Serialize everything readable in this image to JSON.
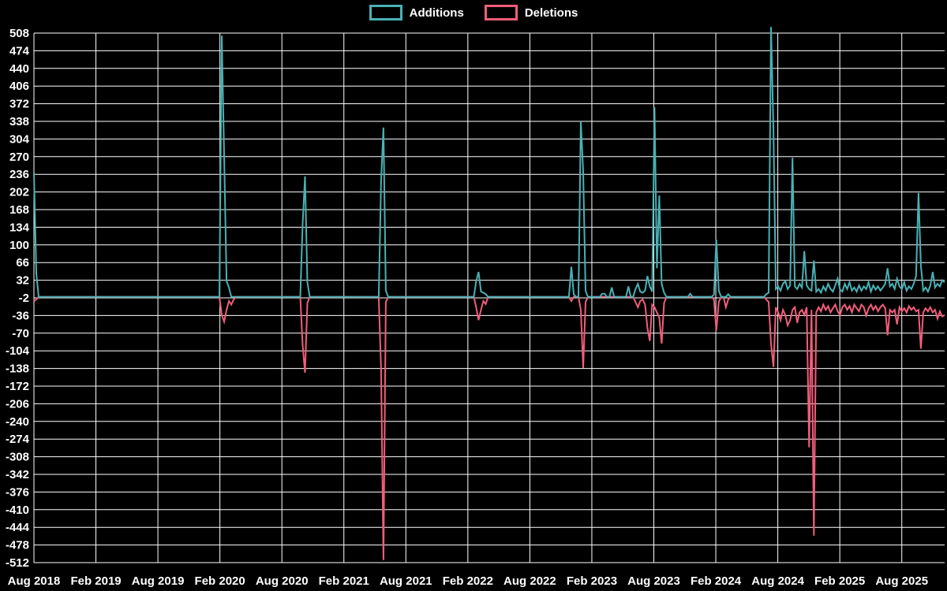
{
  "legend": {
    "items": [
      {
        "label": "Additions",
        "color": "#48b1b5"
      },
      {
        "label": "Deletions",
        "color": "#f25d7a"
      }
    ]
  },
  "chart_data": {
    "type": "line",
    "title": "",
    "xlabel": "",
    "ylabel": "",
    "background_color": "#000000",
    "grid": true,
    "grid_color": "#ffffff",
    "text_color": "#ffffff",
    "legend_position": "top-center",
    "x_unit": "weeks since Aug 2018",
    "weeks_total": 384,
    "x_axis": {
      "tick_labels": [
        "Aug 2018",
        "Feb 2019",
        "Aug 2019",
        "Feb 2020",
        "Aug 2020",
        "Feb 2021",
        "Aug 2021",
        "Feb 2022",
        "Aug 2022",
        "Feb 2023",
        "Aug 2023",
        "Feb 2024",
        "Aug 2024",
        "Feb 2025",
        "Aug 2025"
      ],
      "tick_spacing_weeks": 26.07
    },
    "y_axis": {
      "range": [
        -512,
        508
      ],
      "ticks": [
        508,
        474,
        440,
        406,
        372,
        338,
        304,
        270,
        236,
        202,
        168,
        134,
        100,
        66,
        32,
        -2,
        -36,
        -70,
        -104,
        -138,
        -172,
        -206,
        -240,
        -274,
        -308,
        -342,
        -376,
        -410,
        -444,
        -478,
        -512
      ]
    },
    "series": [
      {
        "name": "Additions",
        "color": "#48b1b5",
        "default": 0,
        "points_sparse": [
          [
            0,
            240
          ],
          [
            1,
            45
          ],
          [
            2,
            0
          ],
          [
            79,
            503
          ],
          [
            80,
            273
          ],
          [
            81,
            30
          ],
          [
            82,
            18
          ],
          [
            83,
            0
          ],
          [
            113,
            141
          ],
          [
            114,
            232
          ],
          [
            115,
            28
          ],
          [
            116,
            0
          ],
          [
            146,
            222
          ],
          [
            147,
            326
          ],
          [
            148,
            12
          ],
          [
            149,
            0
          ],
          [
            186,
            30
          ],
          [
            187,
            48
          ],
          [
            188,
            10
          ],
          [
            189,
            8
          ],
          [
            190,
            5
          ],
          [
            191,
            0
          ],
          [
            226,
            58
          ],
          [
            227,
            5
          ],
          [
            228,
            0
          ],
          [
            230,
            338
          ],
          [
            231,
            240
          ],
          [
            232,
            12
          ],
          [
            233,
            0
          ],
          [
            239,
            6
          ],
          [
            240,
            6
          ],
          [
            241,
            0
          ],
          [
            243,
            18
          ],
          [
            244,
            0
          ],
          [
            250,
            20
          ],
          [
            251,
            0
          ],
          [
            253,
            15
          ],
          [
            254,
            25
          ],
          [
            255,
            10
          ],
          [
            256,
            8
          ],
          [
            257,
            12
          ],
          [
            258,
            40
          ],
          [
            259,
            20
          ],
          [
            260,
            10
          ],
          [
            261,
            365
          ],
          [
            262,
            55
          ],
          [
            263,
            195
          ],
          [
            264,
            25
          ],
          [
            265,
            8
          ],
          [
            266,
            0
          ],
          [
            276,
            6
          ],
          [
            277,
            0
          ],
          [
            286,
            4
          ],
          [
            287,
            110
          ],
          [
            288,
            12
          ],
          [
            289,
            0
          ],
          [
            292,
            5
          ],
          [
            293,
            0
          ],
          [
            308,
            5
          ],
          [
            309,
            8
          ],
          [
            310,
            520
          ],
          [
            311,
            320
          ],
          [
            312,
            15
          ],
          [
            313,
            20
          ],
          [
            314,
            12
          ],
          [
            315,
            25
          ],
          [
            316,
            30
          ],
          [
            317,
            15
          ],
          [
            318,
            22
          ],
          [
            319,
            268
          ],
          [
            320,
            20
          ],
          [
            321,
            15
          ],
          [
            322,
            25
          ],
          [
            323,
            18
          ],
          [
            324,
            88
          ],
          [
            325,
            22
          ],
          [
            326,
            15
          ],
          [
            327,
            12
          ],
          [
            328,
            70
          ],
          [
            329,
            10
          ],
          [
            330,
            15
          ],
          [
            331,
            8
          ],
          [
            332,
            20
          ],
          [
            333,
            12
          ],
          [
            334,
            25
          ],
          [
            335,
            15
          ],
          [
            336,
            10
          ],
          [
            337,
            22
          ],
          [
            338,
            35
          ],
          [
            339,
            14
          ],
          [
            340,
            10
          ],
          [
            341,
            25
          ],
          [
            342,
            15
          ],
          [
            343,
            28
          ],
          [
            344,
            12
          ],
          [
            345,
            18
          ],
          [
            346,
            10
          ],
          [
            347,
            22
          ],
          [
            348,
            12
          ],
          [
            349,
            20
          ],
          [
            350,
            15
          ],
          [
            351,
            28
          ],
          [
            352,
            10
          ],
          [
            353,
            22
          ],
          [
            354,
            14
          ],
          [
            355,
            20
          ],
          [
            356,
            12
          ],
          [
            357,
            18
          ],
          [
            358,
            25
          ],
          [
            359,
            55
          ],
          [
            360,
            20
          ],
          [
            361,
            25
          ],
          [
            362,
            15
          ],
          [
            363,
            35
          ],
          [
            364,
            20
          ],
          [
            365,
            15
          ],
          [
            366,
            28
          ],
          [
            367,
            12
          ],
          [
            368,
            20
          ],
          [
            369,
            15
          ],
          [
            370,
            25
          ],
          [
            371,
            40
          ],
          [
            372,
            200
          ],
          [
            373,
            60
          ],
          [
            374,
            12
          ],
          [
            375,
            18
          ],
          [
            376,
            10
          ],
          [
            377,
            22
          ],
          [
            378,
            48
          ],
          [
            379,
            18
          ],
          [
            380,
            25
          ],
          [
            381,
            20
          ],
          [
            382,
            32
          ],
          [
            383,
            28
          ]
        ]
      },
      {
        "name": "Deletions",
        "color": "#f25d7a",
        "default": 0,
        "points_sparse": [
          [
            0,
            -8
          ],
          [
            1,
            -5
          ],
          [
            2,
            0
          ],
          [
            79,
            -35
          ],
          [
            80,
            -48
          ],
          [
            81,
            -25
          ],
          [
            82,
            -8
          ],
          [
            83,
            -15
          ],
          [
            84,
            -5
          ],
          [
            85,
            0
          ],
          [
            113,
            -93
          ],
          [
            114,
            -146
          ],
          [
            115,
            -12
          ],
          [
            116,
            0
          ],
          [
            146,
            -140
          ],
          [
            147,
            -507
          ],
          [
            148,
            -10
          ],
          [
            149,
            0
          ],
          [
            186,
            -20
          ],
          [
            187,
            -45
          ],
          [
            188,
            -25
          ],
          [
            189,
            -8
          ],
          [
            190,
            -14
          ],
          [
            191,
            0
          ],
          [
            226,
            -8
          ],
          [
            227,
            0
          ],
          [
            230,
            -25
          ],
          [
            231,
            -137
          ],
          [
            232,
            -10
          ],
          [
            233,
            0
          ],
          [
            253,
            -10
          ],
          [
            254,
            -20
          ],
          [
            255,
            -8
          ],
          [
            256,
            -5
          ],
          [
            257,
            -15
          ],
          [
            258,
            -60
          ],
          [
            259,
            -85
          ],
          [
            260,
            -15
          ],
          [
            261,
            -20
          ],
          [
            262,
            -30
          ],
          [
            263,
            -40
          ],
          [
            264,
            -90
          ],
          [
            265,
            -12
          ],
          [
            266,
            0
          ],
          [
            286,
            -5
          ],
          [
            287,
            -65
          ],
          [
            288,
            -10
          ],
          [
            289,
            0
          ],
          [
            291,
            -20
          ],
          [
            292,
            -5
          ],
          [
            293,
            0
          ],
          [
            308,
            -5
          ],
          [
            309,
            -10
          ],
          [
            310,
            -90
          ],
          [
            311,
            -135
          ],
          [
            312,
            -20
          ],
          [
            313,
            -30
          ],
          [
            314,
            -45
          ],
          [
            315,
            -25
          ],
          [
            316,
            -35
          ],
          [
            317,
            -55
          ],
          [
            318,
            -45
          ],
          [
            319,
            -25
          ],
          [
            320,
            -20
          ],
          [
            321,
            -50
          ],
          [
            322,
            -30
          ],
          [
            323,
            -25
          ],
          [
            324,
            -35
          ],
          [
            325,
            -20
          ],
          [
            326,
            -290
          ],
          [
            327,
            -25
          ],
          [
            328,
            -460
          ],
          [
            329,
            -30
          ],
          [
            330,
            -20
          ],
          [
            331,
            -28
          ],
          [
            332,
            -15
          ],
          [
            333,
            -25
          ],
          [
            334,
            -18
          ],
          [
            335,
            -30
          ],
          [
            336,
            -22
          ],
          [
            337,
            -15
          ],
          [
            338,
            -28
          ],
          [
            339,
            -35
          ],
          [
            340,
            -20
          ],
          [
            341,
            -15
          ],
          [
            342,
            -25
          ],
          [
            343,
            -18
          ],
          [
            344,
            -30
          ],
          [
            345,
            -15
          ],
          [
            346,
            -22
          ],
          [
            347,
            -28
          ],
          [
            348,
            -15
          ],
          [
            349,
            -20
          ],
          [
            350,
            -36
          ],
          [
            351,
            -22
          ],
          [
            352,
            -15
          ],
          [
            353,
            -25
          ],
          [
            354,
            -18
          ],
          [
            355,
            -28
          ],
          [
            356,
            -20
          ],
          [
            357,
            -15
          ],
          [
            358,
            -22
          ],
          [
            359,
            -74
          ],
          [
            360,
            -25
          ],
          [
            361,
            -30
          ],
          [
            362,
            -25
          ],
          [
            363,
            -53
          ],
          [
            364,
            -20
          ],
          [
            365,
            -28
          ],
          [
            366,
            -22
          ],
          [
            367,
            -30
          ],
          [
            368,
            -18
          ],
          [
            369,
            -25
          ],
          [
            370,
            -20
          ],
          [
            371,
            -28
          ],
          [
            372,
            -25
          ],
          [
            373,
            -100
          ],
          [
            374,
            -30
          ],
          [
            375,
            -22
          ],
          [
            376,
            -28
          ],
          [
            377,
            -20
          ],
          [
            378,
            -30
          ],
          [
            379,
            -25
          ],
          [
            380,
            -42
          ],
          [
            381,
            -28
          ],
          [
            382,
            -38
          ],
          [
            383,
            -35
          ]
        ]
      }
    ]
  }
}
